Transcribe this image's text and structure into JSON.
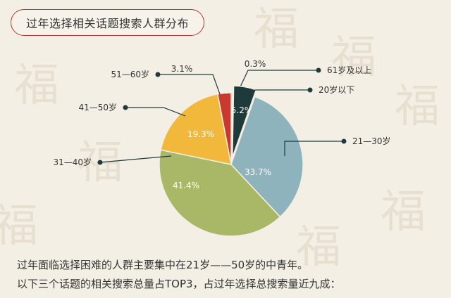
{
  "title": "过年选择相关话题搜索人群分布",
  "captions": [
    "过年面临选择困难的人群主要集中在21岁——50岁的中青年。",
    "以下三个话题的相关搜索总量占TOP3，占过年选择总搜索量近九成："
  ],
  "chart_data": {
    "type": "pie",
    "title": "过年选择相关话题搜索人群分布",
    "start": "12 o'clock, clockwise",
    "slices": [
      {
        "label": "61岁及以上",
        "value": 0.3,
        "value_label": "0.3%",
        "color": "#1f3a3b"
      },
      {
        "label": "20岁以下",
        "value": 5.2,
        "value_label": "5.2%",
        "color": "#1f3a3b"
      },
      {
        "label": "21—30岁",
        "value": 33.7,
        "value_label": "33.7%",
        "color": "#8fb3bd"
      },
      {
        "label": "31—40岁",
        "value": 41.4,
        "value_label": "41.4%",
        "color": "#a9b866"
      },
      {
        "label": "41—50岁",
        "value": 19.3,
        "value_label": "19.3%",
        "color": "#f2b83b"
      },
      {
        "label": "51—60岁",
        "value": 3.1,
        "value_label": "3.1%",
        "color": "#c83a2e"
      }
    ]
  }
}
